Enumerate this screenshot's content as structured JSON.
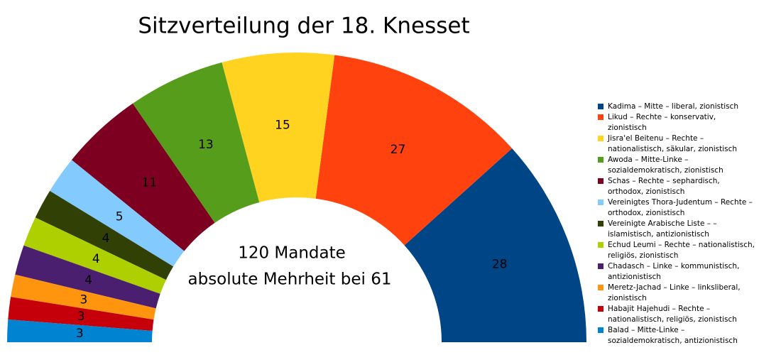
{
  "chart_data": {
    "type": "half-donut",
    "title": "Sitzverteilung der 18. Knesset",
    "annotations": [
      "120 Mandate",
      "absolute Mehrheit bei 61"
    ],
    "categories": [
      "Kadima – Mitte – liberal, zionistisch",
      "Likud – Rechte – konservativ, zionistisch",
      "Jisra'el Beitenu – Rechte – nationalistisch, säkular, zionistisch",
      "Awoda – Mitte-Linke – sozialdemokratisch, zionistisch",
      "Schas – Rechte – sephardisch, orthodox, zionistisch",
      "Vereinigtes Thora-Judentum – Rechte – orthodox, zionistisch",
      "Vereinigte Arabische Liste – – islamistisch, antizionistisch",
      "Echud Leumi – Rechte – nationalistisch, religiös, zionistisch",
      "Chadasch – Linke – kommunistisch, antizionistisch",
      "Meretz-Jachad – Linke – linksliberal, zionistisch",
      "Habajit Hajehudi – Rechte – nationalistisch, religiös, zionistisch",
      "Balad – Mitte-Linke – sozialdemokratisch, antizionistisch"
    ],
    "values": [
      28,
      27,
      15,
      13,
      11,
      5,
      4,
      4,
      4,
      3,
      3,
      3
    ],
    "colors": [
      "#004586",
      "#ff420e",
      "#ffd320",
      "#579d1c",
      "#7e0021",
      "#83caff",
      "#314004",
      "#aecf00",
      "#4b1f6f",
      "#ff950e",
      "#c5000b",
      "#0084d1"
    ],
    "legend": "right"
  }
}
